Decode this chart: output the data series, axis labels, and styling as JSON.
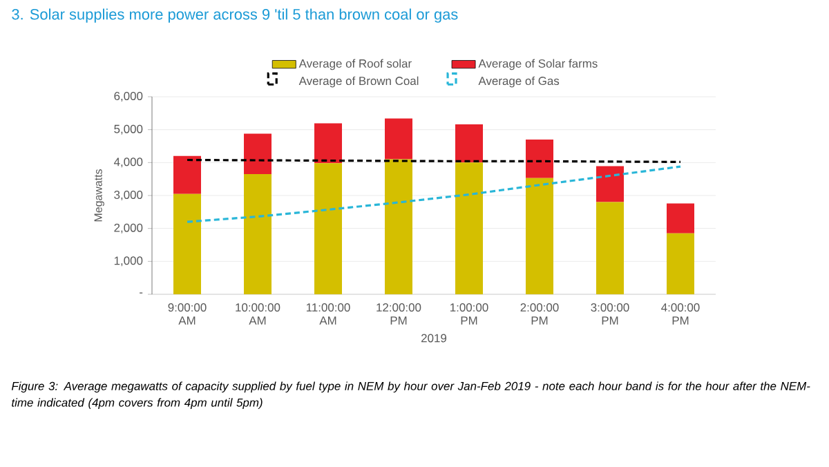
{
  "chart_data": {
    "type": "bar",
    "title": "3. Solar supplies more power across 9 'til 5 than brown coal or gas",
    "categories": [
      "9:00:00 AM",
      "10:00:00 AM",
      "11:00:00 AM",
      "12:00:00 PM",
      "1:00:00 PM",
      "2:00:00 PM",
      "3:00:00 PM",
      "4:00:00 PM"
    ],
    "xlabel": "2019",
    "ylabel": "Megawatts",
    "stacked": true,
    "grid": "y",
    "legend": "top",
    "ylim": [
      0,
      6000
    ],
    "yticks": [
      {
        "value": 0,
        "label": "-"
      },
      {
        "value": 1000,
        "label": "1,000"
      },
      {
        "value": 2000,
        "label": "2,000"
      },
      {
        "value": 3000,
        "label": "3,000"
      },
      {
        "value": 4000,
        "label": "4,000"
      },
      {
        "value": 5000,
        "label": "5,000"
      },
      {
        "value": 6000,
        "label": "6,000"
      }
    ],
    "series": [
      {
        "name": "Average of Roof solar",
        "color": "#d4bf00",
        "values": [
          3050,
          3650,
          3980,
          4100,
          4000,
          3530,
          2800,
          1850
        ]
      },
      {
        "name": "Average of Solar farms",
        "color": "#e8202a",
        "values": [
          1150,
          1230,
          1210,
          1240,
          1160,
          1170,
          1090,
          910
        ]
      },
      {
        "name": "Average of Brown Coal",
        "type": "line",
        "line_style": "dashed",
        "color": "#000000",
        "values": [
          4080,
          4070,
          4060,
          4050,
          4040,
          4040,
          4030,
          4020
        ]
      },
      {
        "name": "Average of Gas",
        "type": "line",
        "line_style": "dashed",
        "color": "#29b6d8",
        "values": [
          2200,
          2360,
          2570,
          2790,
          3030,
          3320,
          3600,
          3880
        ]
      }
    ],
    "annotations": [
      "Figure 3: Average megawatts of capacity supplied by fuel type in NEM by hour over Jan-Feb 2019 - note each hour band is for the hour after the NEM-time indicated (4pm covers from 4pm until 5pm)"
    ]
  }
}
